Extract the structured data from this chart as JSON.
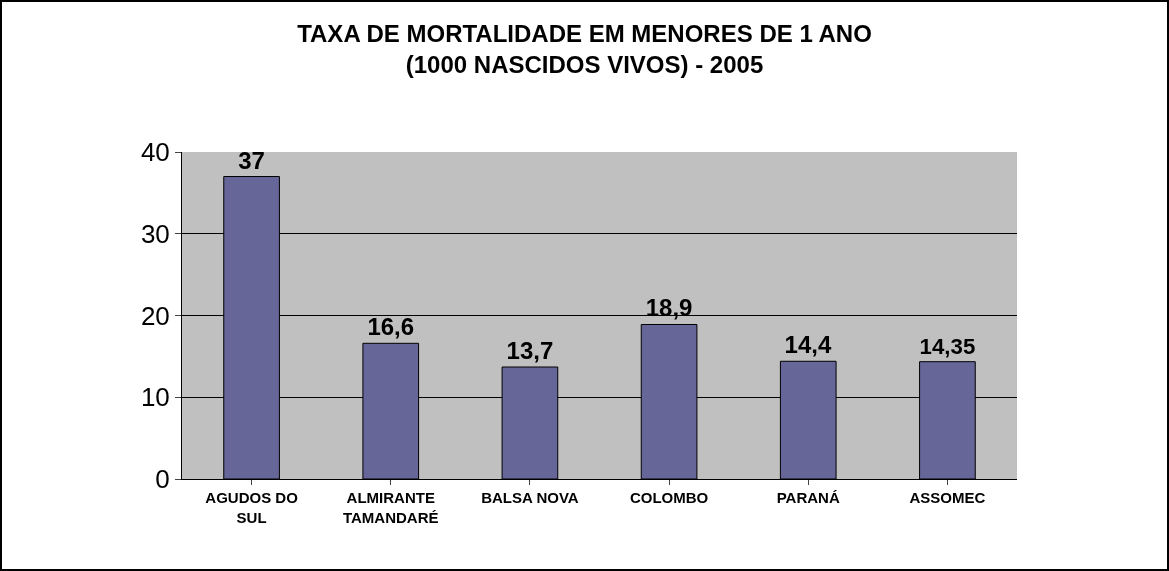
{
  "chart_data": {
    "type": "bar",
    "title": "TAXA DE MORTALIDADE EM MENORES DE 1 ANO\n(1000 NASCIDOS VIVOS) - 2005",
    "categories": [
      "AGUDOS DO SUL",
      "ALMIRANTE TAMANDARÉ",
      "BALSA NOVA",
      "COLOMBO",
      "PARANÁ",
      "ASSOMEC"
    ],
    "values": [
      37,
      16.6,
      13.7,
      18.9,
      14.4,
      14.35
    ],
    "value_labels": [
      "37",
      "16,6",
      "13,7",
      "18,9",
      "14,4",
      "14,35"
    ],
    "color": "#666699",
    "ylim": [
      0,
      40
    ],
    "yticks": [
      0,
      10,
      20,
      30,
      40
    ],
    "grid": "y"
  }
}
